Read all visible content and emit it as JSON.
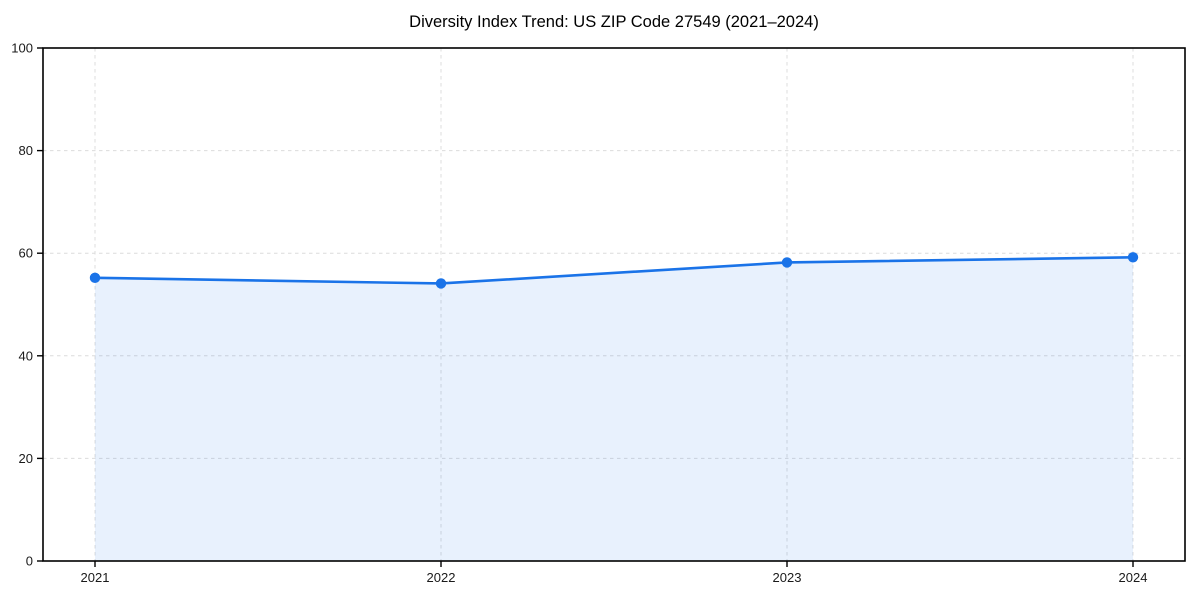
{
  "chart_data": {
    "type": "line",
    "title": "Diversity Index Trend: US ZIP Code 27549 (2021–2024)",
    "categories": [
      "2021",
      "2022",
      "2023",
      "2024"
    ],
    "series": [
      {
        "name": "Diversity Index",
        "values": [
          55.2,
          54.1,
          58.2,
          59.2
        ]
      }
    ],
    "xlabel": "",
    "ylabel": "",
    "ylim": [
      0,
      100
    ],
    "yticks": [
      0,
      20,
      40,
      60,
      80,
      100
    ],
    "grid": {
      "horizontal": true,
      "vertical": true,
      "style": "dashed"
    },
    "legend": "none",
    "area_fill": true,
    "markers": true,
    "colors": {
      "line": "#1a73e8",
      "marker": "#1a73e8",
      "area_fill": "rgba(26,115,232,0.10)",
      "grid": "#dcdcdc",
      "spine": "#000000",
      "tick_text": "#1a1a1a",
      "background": "#ffffff"
    }
  }
}
